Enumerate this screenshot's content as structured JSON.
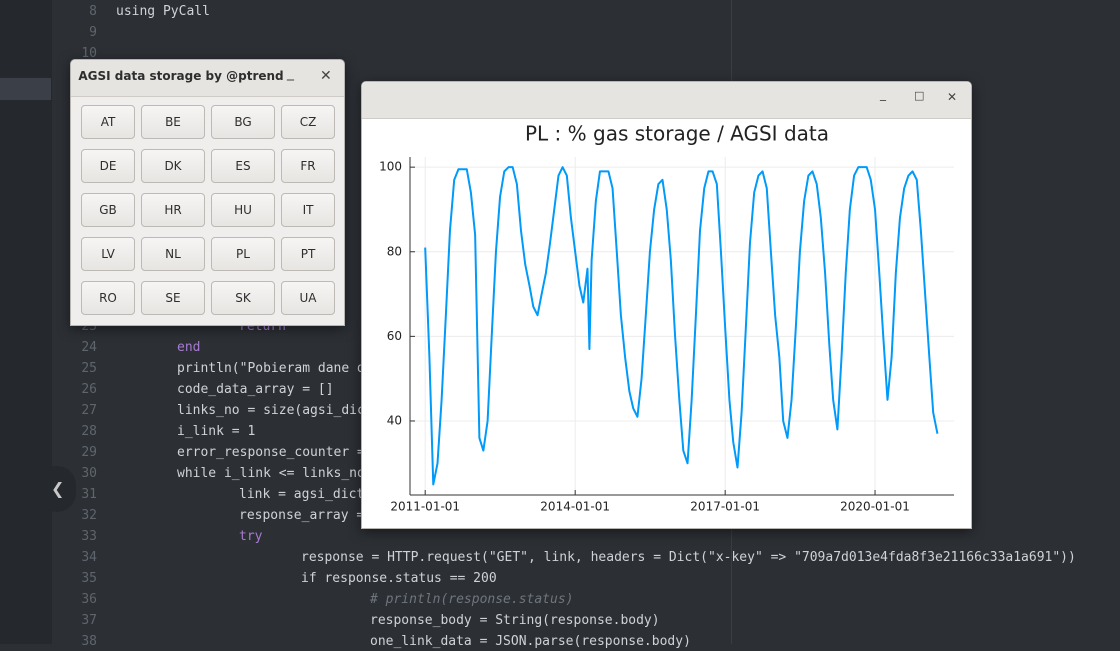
{
  "editor": {
    "lines": [
      {
        "number": 8,
        "text": "using PyCall"
      },
      {
        "number": 9
      },
      {
        "number": 10
      },
      {
        "number": 23,
        "text": "return"
      },
      {
        "number": 24,
        "text": "end"
      },
      {
        "number": 25,
        "text": "println(\"Pobieram dane d"
      },
      {
        "number": 26,
        "text": "code_data_array = []"
      },
      {
        "number": 27,
        "text": "links_no = size(agsi_dic"
      },
      {
        "number": 28,
        "text": "i_link = 1"
      },
      {
        "number": 29,
        "text": "error_response_counter ="
      },
      {
        "number": 30,
        "text": "while i_link <= links_no"
      },
      {
        "number": 31,
        "text": "link = agsi_dict"
      },
      {
        "number": 32,
        "text": "response_array ="
      },
      {
        "number": 33,
        "text": "try"
      },
      {
        "number": 34,
        "text": "response = HTTP.request(\"GET\", link, headers = Dict(\"x-key\" => \"709a7d013e4fda8f3e21166c33a1a691\"))"
      },
      {
        "number": 35,
        "text": "if response.status == 200"
      },
      {
        "number": 36,
        "text": "# println(response.status)"
      },
      {
        "number": 37,
        "text": "response_body = String(response.body)"
      },
      {
        "number": 38,
        "text": "one_link_data = JSON.parse(response.body)"
      }
    ]
  },
  "window": {
    "title": "AGSI data storage by @ptrend",
    "buttons": [
      "AT",
      "BE",
      "BG",
      "CZ",
      "DE",
      "DK",
      "ES",
      "FR",
      "GB",
      "HR",
      "HU",
      "IT",
      "LV",
      "NL",
      "PL",
      "PT",
      "RO",
      "SE",
      "SK",
      "UA"
    ]
  },
  "chart_data": {
    "type": "line",
    "title": "PL : % gas storage / AGSI data",
    "x": [
      "2011-01-01",
      "2011-02-01",
      "2011-03-01",
      "2011-04-01",
      "2011-05-01",
      "2011-06-01",
      "2011-07-01",
      "2011-08-01",
      "2011-09-01",
      "2011-10-01",
      "2011-11-01",
      "2011-12-01",
      "2012-01-01",
      "2012-02-01",
      "2012-03-01",
      "2012-04-01",
      "2012-05-01",
      "2012-06-01",
      "2012-07-01",
      "2012-08-01",
      "2012-09-01",
      "2012-10-01",
      "2012-11-01",
      "2012-12-01",
      "2013-01-01",
      "2013-02-01",
      "2013-03-01",
      "2013-04-01",
      "2013-05-01",
      "2013-06-01",
      "2013-07-01",
      "2013-08-01",
      "2013-09-01",
      "2013-10-01",
      "2013-11-01",
      "2013-12-01",
      "2014-01-01",
      "2014-02-01",
      "2014-03-01",
      "2014-04-01",
      "2014-04-15",
      "2014-05-01",
      "2014-06-01",
      "2014-07-01",
      "2014-08-01",
      "2014-09-01",
      "2014-10-01",
      "2014-11-01",
      "2014-12-01",
      "2015-01-01",
      "2015-02-01",
      "2015-03-01",
      "2015-04-01",
      "2015-05-01",
      "2015-06-01",
      "2015-07-01",
      "2015-08-01",
      "2015-09-01",
      "2015-10-01",
      "2015-11-01",
      "2015-12-01",
      "2016-01-01",
      "2016-02-01",
      "2016-03-01",
      "2016-04-01",
      "2016-05-01",
      "2016-06-01",
      "2016-07-01",
      "2016-08-01",
      "2016-09-01",
      "2016-10-01",
      "2016-11-01",
      "2016-12-01",
      "2017-01-01",
      "2017-02-01",
      "2017-03-01",
      "2017-04-01",
      "2017-05-01",
      "2017-06-01",
      "2017-07-01",
      "2017-08-01",
      "2017-09-01",
      "2017-10-01",
      "2017-11-01",
      "2017-12-01",
      "2018-01-01",
      "2018-02-01",
      "2018-03-01",
      "2018-04-01",
      "2018-05-01",
      "2018-06-01",
      "2018-07-01",
      "2018-08-01",
      "2018-09-01",
      "2018-10-01",
      "2018-11-01",
      "2018-12-01",
      "2019-01-01",
      "2019-02-01",
      "2019-03-01",
      "2019-04-01",
      "2019-05-01",
      "2019-06-01",
      "2019-07-01",
      "2019-08-01",
      "2019-09-01",
      "2019-10-01",
      "2019-11-01",
      "2019-12-01",
      "2020-01-01",
      "2020-02-01",
      "2020-03-01",
      "2020-04-01",
      "2020-05-01",
      "2020-06-01",
      "2020-07-01",
      "2020-08-01",
      "2020-09-01",
      "2020-10-01",
      "2020-11-01",
      "2020-12-01",
      "2021-01-01",
      "2021-02-01",
      "2021-03-01",
      "2021-04-01"
    ],
    "series": [
      {
        "color": "#009af9",
        "values": [
          81,
          55,
          25,
          30,
          45,
          65,
          85,
          97,
          99.5,
          99.5,
          99.5,
          94,
          84,
          36,
          33,
          40,
          60,
          80,
          93,
          99,
          100,
          100,
          96,
          85,
          77,
          72,
          67,
          65,
          70,
          75,
          82,
          90,
          98,
          100,
          98,
          88,
          80,
          72,
          68,
          76,
          57,
          78,
          92,
          99,
          99,
          99,
          95,
          80,
          65,
          55,
          47,
          43,
          41,
          50,
          65,
          80,
          90,
          96,
          97,
          90,
          78,
          60,
          45,
          33,
          30,
          45,
          65,
          85,
          95,
          99,
          99,
          96,
          80,
          62,
          45,
          35,
          29,
          42,
          62,
          82,
          94,
          98,
          99,
          95,
          80,
          65,
          55,
          40,
          36,
          45,
          62,
          80,
          92,
          98,
          99,
          96,
          88,
          75,
          58,
          45,
          38,
          55,
          75,
          90,
          98,
          100,
          100,
          100,
          97,
          90,
          75,
          60,
          45,
          55,
          75,
          88,
          95,
          98,
          99,
          97,
          85,
          70,
          55,
          42,
          37
        ]
      }
    ],
    "xlim": [
      "2010-09-12",
      "2021-07-31"
    ],
    "xticks": [
      "2011-01-01",
      "2014-01-01",
      "2017-01-01",
      "2020-01-01"
    ],
    "ylim": [
      22.5,
      102.4
    ],
    "yticks": [
      40,
      60,
      80,
      100
    ],
    "grid": true
  }
}
